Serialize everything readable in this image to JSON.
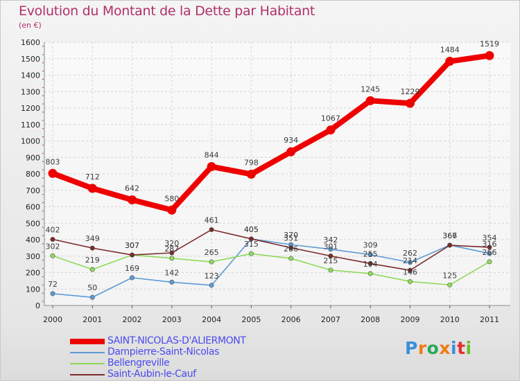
{
  "title": "Evolution du Montant de la Dette par Habitant",
  "unit_label": "(en €)",
  "logo": {
    "letters": [
      {
        "ch": "P",
        "color": "#3a8fd8"
      },
      {
        "ch": "r",
        "color": "#ef7b14"
      },
      {
        "ch": "o",
        "color": "#2aa85a"
      },
      {
        "ch": "x",
        "color": "#ef7b14"
      },
      {
        "ch": "i",
        "color": "#3a8fd8"
      },
      {
        "ch": "t",
        "color": "#e53030"
      },
      {
        "ch": "i",
        "color": "#6ac02a"
      }
    ]
  },
  "chart_data": {
    "type": "line",
    "x": [
      "2000",
      "2001",
      "2002",
      "2003",
      "2004",
      "2005",
      "2006",
      "2007",
      "2008",
      "2009",
      "2010",
      "2011"
    ],
    "ylim": [
      0,
      1600
    ],
    "yticks": [
      0,
      100,
      200,
      300,
      400,
      500,
      600,
      700,
      800,
      900,
      1000,
      1100,
      1200,
      1300,
      1400,
      1500,
      1600
    ],
    "grid": true,
    "legend_position": "bottom-left",
    "series": [
      {
        "name": "SAINT-NICOLAS-D'ALIERMONT",
        "color": "#ee0000",
        "style": "thick",
        "values": [
          803,
          712,
          642,
          580,
          844,
          798,
          934,
          1067,
          1245,
          1229,
          1484,
          1519
        ]
      },
      {
        "name": "Dampierre-Saint-Nicolas",
        "color": "#5b9bd5",
        "style": "thin",
        "values": [
          72,
          50,
          169,
          142,
          123,
          405,
          370,
          342,
          309,
          262,
          367,
          316
        ]
      },
      {
        "name": "Bellengreville",
        "color": "#8fda5a",
        "style": "thin",
        "values": [
          302,
          219,
          307,
          287,
          265,
          315,
          286,
          215,
          194,
          146,
          125,
          266
        ]
      },
      {
        "name": "Saint-Aubin-le-Cauf",
        "color": "#7a2a2a",
        "style": "thin",
        "values": [
          402,
          349,
          307,
          320,
          461,
          405,
          351,
          301,
          255,
          214,
          366,
          354
        ]
      }
    ]
  }
}
